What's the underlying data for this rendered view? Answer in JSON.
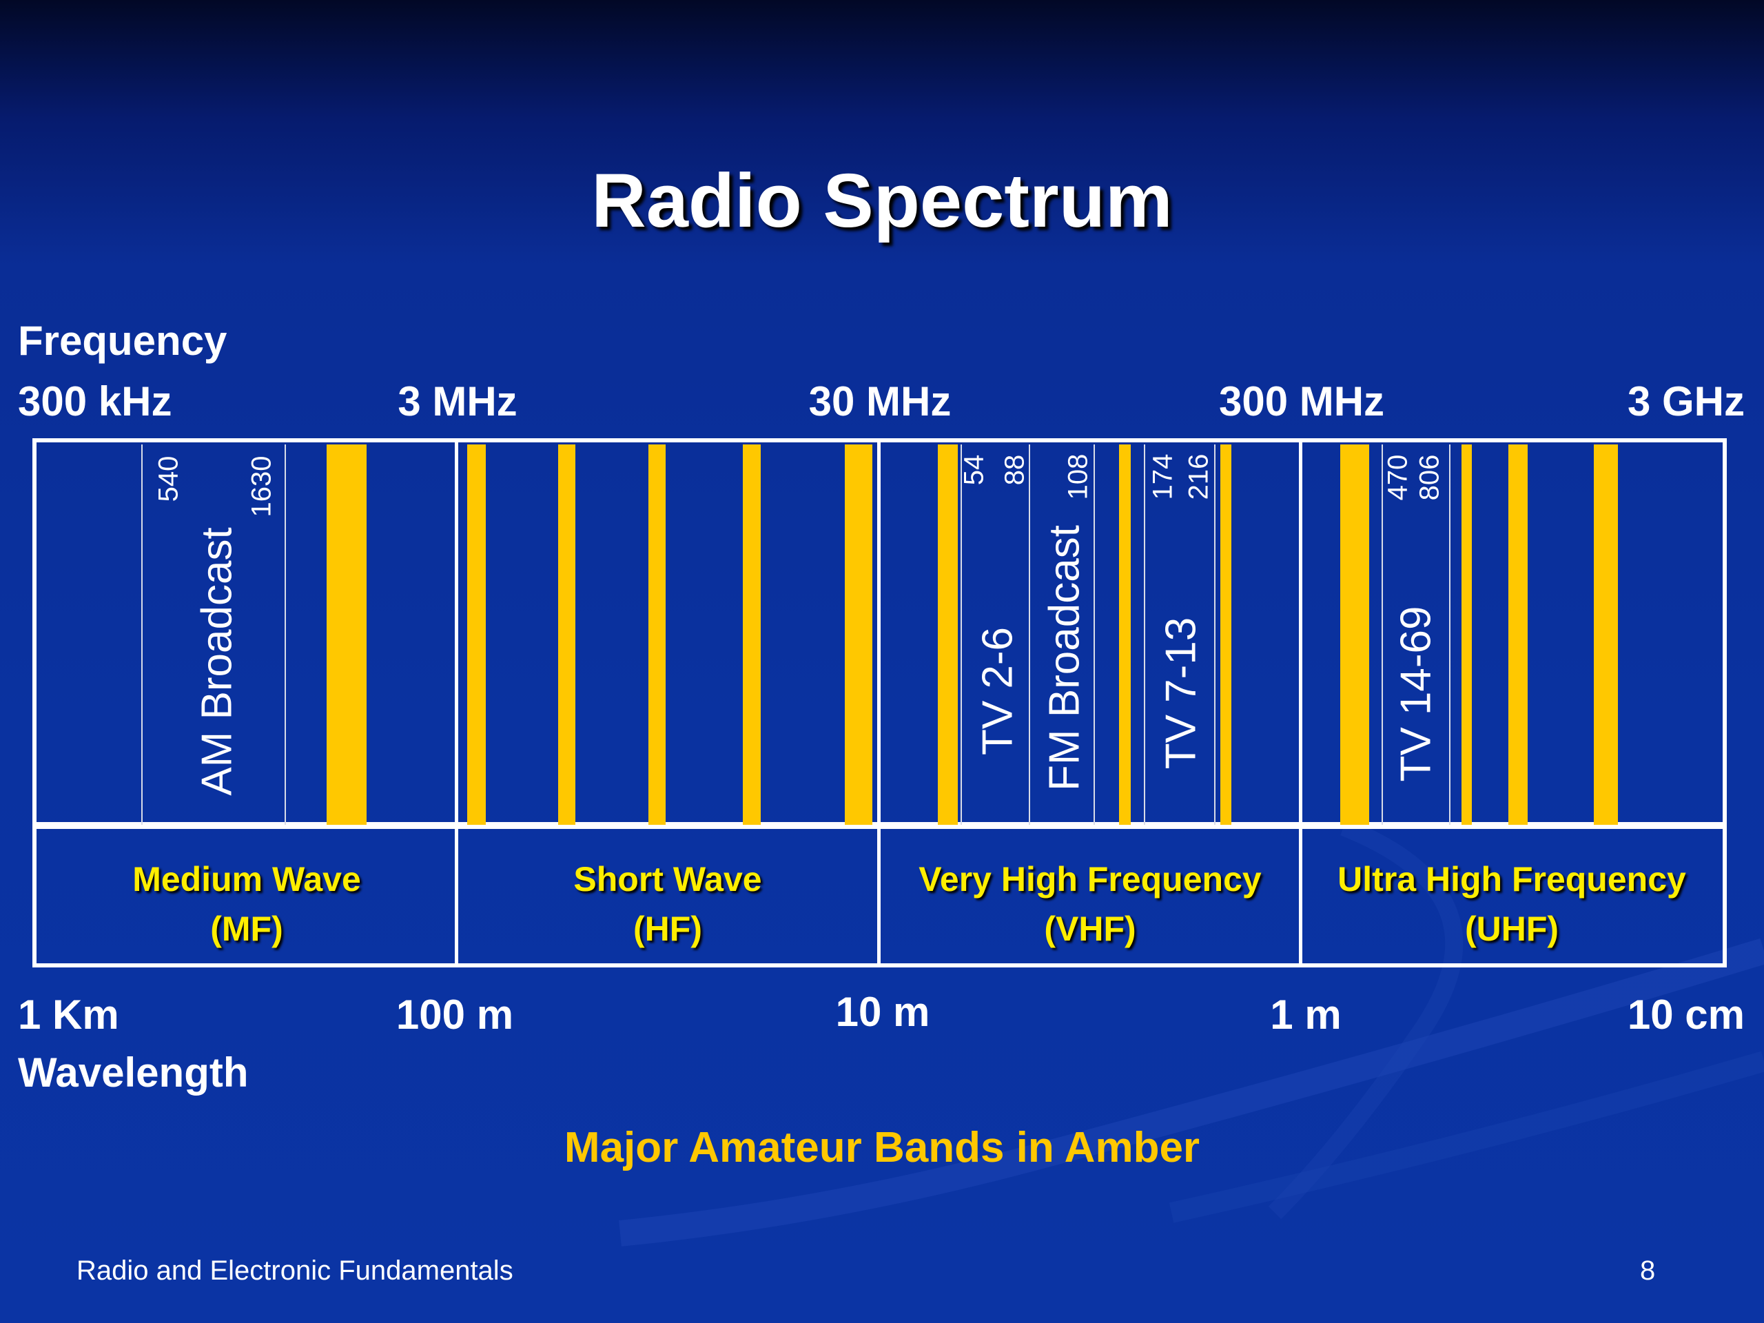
{
  "title": "Radio Spectrum",
  "frequency": {
    "label": "Frequency",
    "ticks": [
      "300 kHz",
      "3 MHz",
      "30 MHz",
      "300 MHz",
      "3 GHz"
    ]
  },
  "wavelength": {
    "label": "Wavelength",
    "ticks": [
      "1 Km",
      "100 m",
      "10 m",
      "1 m",
      "10 cm"
    ]
  },
  "services": [
    {
      "label": "AM Broadcast",
      "from": "540",
      "to": "1630"
    },
    {
      "label": "TV 2-6",
      "from": "54",
      "to": "88"
    },
    {
      "label": "FM Broadcast",
      "from": "",
      "to": "108"
    },
    {
      "label": "TV 7-13",
      "from": "174",
      "to": "216"
    },
    {
      "label": "TV 14-69",
      "from": "470",
      "to": "806"
    }
  ],
  "regions": [
    {
      "line1": "Medium Wave",
      "line2": "(MF)"
    },
    {
      "line1": "Short Wave",
      "line2": "(HF)"
    },
    {
      "line1": "Very High Frequency",
      "line2": "(VHF)"
    },
    {
      "line1": "Ultra High Frequency",
      "line2": "(UHF)"
    }
  ],
  "legend_note": "Major Amateur Bands in Amber",
  "footer": {
    "left": "Radio and Electronic Fundamentals",
    "page": "8"
  },
  "colors": {
    "amber": "#ffc800",
    "region_text": "#ffee00",
    "background": "#0a32a0"
  }
}
